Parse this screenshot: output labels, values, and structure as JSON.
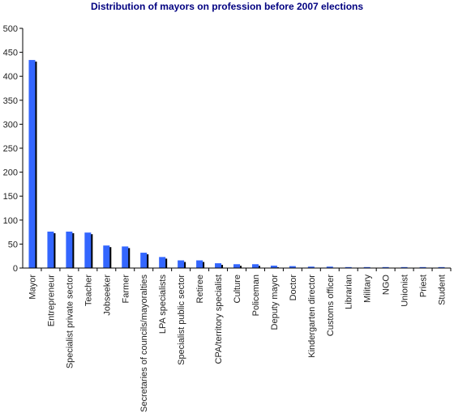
{
  "chart_data": {
    "type": "bar",
    "title": "Distribution of mayors on profession before 2007 elections",
    "xlabel": "",
    "ylabel": "",
    "ylim": [
      0,
      500
    ],
    "yticks": [
      0,
      50,
      100,
      150,
      200,
      250,
      300,
      350,
      400,
      450,
      500
    ],
    "grid": false,
    "legend": "none",
    "bar_color": "#3366ff",
    "shadow_color": "#000000",
    "categories": [
      "Mayor",
      "Entrepreneur",
      "Specialist private sector",
      "Teacher",
      "Jobseeker",
      "Farmer",
      "Secretaries of councils/mayoralties",
      "LPA specialists",
      "Specialist public sector",
      "Retiree",
      "CPA/territory specialist",
      "Culture",
      "Policeman",
      "Deputy mayor",
      "Doctor",
      "Kindergarten director",
      "Customs officer",
      "Librarian",
      "Military",
      "NGO",
      "Unionist",
      "Priest",
      "Student"
    ],
    "values": [
      434,
      76,
      76,
      74,
      47,
      45,
      32,
      23,
      16,
      16,
      10,
      8,
      8,
      5,
      4,
      3,
      3,
      2,
      2,
      2,
      2,
      2,
      2
    ]
  }
}
